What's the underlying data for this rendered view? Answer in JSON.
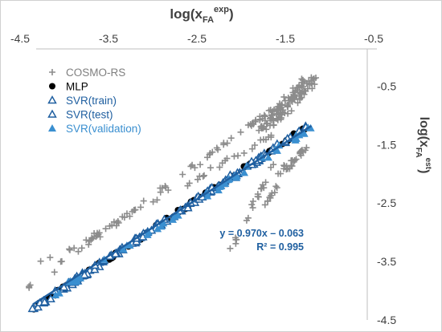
{
  "chart_data": {
    "type": "scatter",
    "xlabel": {
      "base": "log(x",
      "sub": "FA",
      "sup": "exp",
      "close": ")"
    },
    "ylabel": {
      "base": "log(x",
      "sub": "FA",
      "sup": "est",
      "close": ")"
    },
    "x_axis_position": "top",
    "y_axis_position": "right",
    "xlim": [
      -4.5,
      -0.5
    ],
    "ylim": [
      -4.5,
      0
    ],
    "x_ticks": [
      "-4.5",
      "-3.5",
      "-2.5",
      "-1.5",
      "-0.5"
    ],
    "y_ticks": [
      "-0.5",
      "-1.5",
      "-2.5",
      "-3.5",
      "-4.5"
    ],
    "x_tick_values": [
      -4.5,
      -3.5,
      -2.5,
      -1.5,
      -0.5
    ],
    "y_tick_values": [
      -0.5,
      -1.5,
      -2.5,
      -3.5,
      -4.5
    ],
    "grid": "none",
    "legend_position": "top-left",
    "series": [
      {
        "name": "COSMO-RS",
        "marker": "plus",
        "color": "#8c8c8c",
        "segments": [
          {
            "x0": -4.35,
            "x1": -1.2,
            "y0": -3.95,
            "y1": -0.45,
            "n": 70,
            "jitter": 0.05
          },
          {
            "x0": -4.2,
            "x1": -1.6,
            "y0": -3.55,
            "y1": -1.35,
            "n": 40,
            "jitter": 0.06
          },
          {
            "x0": -1.7,
            "x1": -1.15,
            "y0": -1.2,
            "y1": -0.42,
            "n": 110,
            "jitter": 0.14
          },
          {
            "x0": -1.5,
            "x1": -1.2,
            "y0": -2.0,
            "y1": -1.55,
            "n": 25,
            "jitter": 0.06
          },
          {
            "x0": -2.05,
            "x1": -1.55,
            "y0": -3.25,
            "y1": -1.75,
            "n": 20,
            "jitter": 0.04
          },
          {
            "x0": -1.7,
            "x1": -1.3,
            "y0": -2.6,
            "y1": -1.65,
            "n": 12,
            "jitter": 0.04
          }
        ]
      },
      {
        "name": "MLP",
        "marker": "circle",
        "color": "#000000",
        "segments": [
          {
            "x0": -4.3,
            "x1": -1.15,
            "y0": -4.3,
            "y1": -1.15,
            "n": 110,
            "jitter": 0.04
          }
        ]
      },
      {
        "name": "SVR(train)",
        "marker": "triangle-open",
        "color": "#1f5fa0",
        "segments": [
          {
            "x0": -4.3,
            "x1": -1.2,
            "y0": -4.3,
            "y1": -1.2,
            "n": 110,
            "jitter": 0.04
          }
        ]
      },
      {
        "name": "SVR(test)",
        "marker": "triangle-open",
        "color": "#1f5fa0",
        "segments": [
          {
            "x0": -4.2,
            "x1": -1.3,
            "y0": -4.2,
            "y1": -1.3,
            "n": 30,
            "jitter": 0.05
          }
        ]
      },
      {
        "name": "SVR(validation)",
        "marker": "triangle-filled",
        "color": "#3a8fd0",
        "segments": [
          {
            "x0": -4.2,
            "x1": -1.15,
            "y0": -4.2,
            "y1": -1.2,
            "n": 50,
            "jitter": 0.05
          }
        ]
      }
    ],
    "fit_line": {
      "slope": 0.97,
      "intercept": -0.063,
      "x_range": [
        -4.3,
        -1.15
      ],
      "color": "#1f5fa0"
    },
    "annotations": {
      "equation": "y = 0.970x – 0.063",
      "r2": "R² = 0.995"
    }
  }
}
